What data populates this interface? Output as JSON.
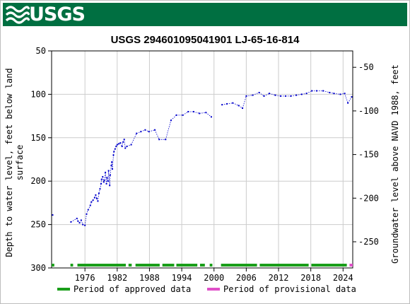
{
  "header": {
    "logo_text": "USGS",
    "logo_icon": "usgs-wave-icon",
    "banner_color": "#006f41"
  },
  "chart_data": {
    "type": "scatter",
    "title": "USGS 294601095041901 LJ-65-16-814",
    "ylabel_left": [
      "Depth to water level, feet below land",
      "surface"
    ],
    "ylabel_right": "Groundwater level above NAVD 1988, feet",
    "x_range": [
      1969.8,
      2025.8
    ],
    "ylim_left": [
      300,
      50
    ],
    "ylim_right": [
      -280,
      -31.2
    ],
    "x_ticks": [
      1976,
      1982,
      1988,
      1994,
      2000,
      2006,
      2012,
      2018,
      2024
    ],
    "y_left_ticks": [
      50,
      100,
      150,
      200,
      250,
      300
    ],
    "y_right_ticks": [
      -50,
      -100,
      -150,
      -200,
      -250
    ],
    "grid": true,
    "series_color": "#0000cc",
    "points": [
      [
        1970.0,
        239
      ],
      [
        1973.4,
        247
      ],
      [
        1974.5,
        243
      ],
      [
        1974.7,
        246
      ],
      [
        1975.0,
        248
      ],
      [
        1975.3,
        245
      ],
      [
        1975.6,
        250
      ],
      [
        1976.0,
        251
      ],
      [
        1976.3,
        238
      ],
      [
        1976.6,
        233
      ],
      [
        1977.0,
        228
      ],
      [
        1977.2,
        224
      ],
      [
        1977.5,
        222
      ],
      [
        1977.8,
        219
      ],
      [
        1978.0,
        216
      ],
      [
        1978.2,
        220
      ],
      [
        1978.4,
        223
      ],
      [
        1978.6,
        214
      ],
      [
        1978.8,
        209
      ],
      [
        1979.0,
        203
      ],
      [
        1979.1,
        198
      ],
      [
        1979.3,
        195
      ],
      [
        1979.5,
        201
      ],
      [
        1979.6,
        199
      ],
      [
        1979.8,
        190
      ],
      [
        1980.0,
        203
      ],
      [
        1980.1,
        196
      ],
      [
        1980.3,
        200
      ],
      [
        1980.4,
        188
      ],
      [
        1980.6,
        205
      ],
      [
        1980.7,
        193
      ],
      [
        1980.9,
        182
      ],
      [
        1981.0,
        178
      ],
      [
        1981.1,
        186
      ],
      [
        1981.3,
        170
      ],
      [
        1981.4,
        166
      ],
      [
        1981.6,
        163
      ],
      [
        1981.8,
        160
      ],
      [
        1982.0,
        158
      ],
      [
        1982.3,
        157
      ],
      [
        1982.6,
        156
      ],
      [
        1982.9,
        160
      ],
      [
        1983.1,
        155
      ],
      [
        1983.3,
        152
      ],
      [
        1983.5,
        162
      ],
      [
        1983.8,
        160
      ],
      [
        1984.6,
        158
      ],
      [
        1985.6,
        145
      ],
      [
        1986.4,
        143
      ],
      [
        1987.2,
        141
      ],
      [
        1987.9,
        143
      ],
      [
        1989.0,
        141
      ],
      [
        1989.8,
        152
      ],
      [
        1991.0,
        152
      ],
      [
        1992.0,
        130
      ],
      [
        1993.0,
        124
      ],
      [
        1994.2,
        124
      ],
      [
        1995.2,
        120
      ],
      [
        1996.2,
        120
      ],
      [
        1997.3,
        122
      ],
      [
        1998.5,
        121
      ],
      [
        1999.5,
        126
      ],
      [
        2001.5,
        112
      ],
      [
        2002.4,
        111
      ],
      [
        2003.5,
        110
      ],
      [
        2004.6,
        113
      ],
      [
        2005.3,
        116
      ],
      [
        2006.0,
        102
      ],
      [
        2007.2,
        101
      ],
      [
        2008.4,
        98
      ],
      [
        2009.3,
        102
      ],
      [
        2010.3,
        99
      ],
      [
        2011.4,
        101
      ],
      [
        2012.4,
        102
      ],
      [
        2013.3,
        102
      ],
      [
        2014.3,
        102
      ],
      [
        2015.3,
        101
      ],
      [
        2016.3,
        100
      ],
      [
        2017.2,
        99
      ],
      [
        2018.2,
        96
      ],
      [
        2019.1,
        96
      ],
      [
        2020.3,
        96
      ],
      [
        2021.5,
        98
      ],
      [
        2022.3,
        99
      ],
      [
        2023.5,
        100
      ],
      [
        2024.3,
        99
      ],
      [
        2024.9,
        110
      ],
      [
        2025.6,
        103
      ]
    ],
    "approved_periods": [
      [
        1969.8,
        1970.3
      ],
      [
        1973.3,
        1973.8
      ],
      [
        1974.6,
        1983.6
      ],
      [
        1984.1,
        1984.7
      ],
      [
        1985.4,
        1989.9
      ],
      [
        1990.4,
        1992.6
      ],
      [
        1993.0,
        1996.9
      ],
      [
        1997.4,
        1998.3
      ],
      [
        1999.2,
        1999.7
      ],
      [
        2001.3,
        2008.0
      ],
      [
        2008.5,
        2017.6
      ],
      [
        2018.1,
        2024.7
      ]
    ],
    "provisional_periods": [
      [
        2025.2,
        2025.8
      ]
    ],
    "approved_color": "#1a9e1a",
    "provisional_color": "#e050c8",
    "legend": [
      {
        "label": "Period of approved data",
        "color": "#1a9e1a"
      },
      {
        "label": "Period of provisional data",
        "color": "#e050c8"
      }
    ],
    "legend_position": "bottom"
  }
}
